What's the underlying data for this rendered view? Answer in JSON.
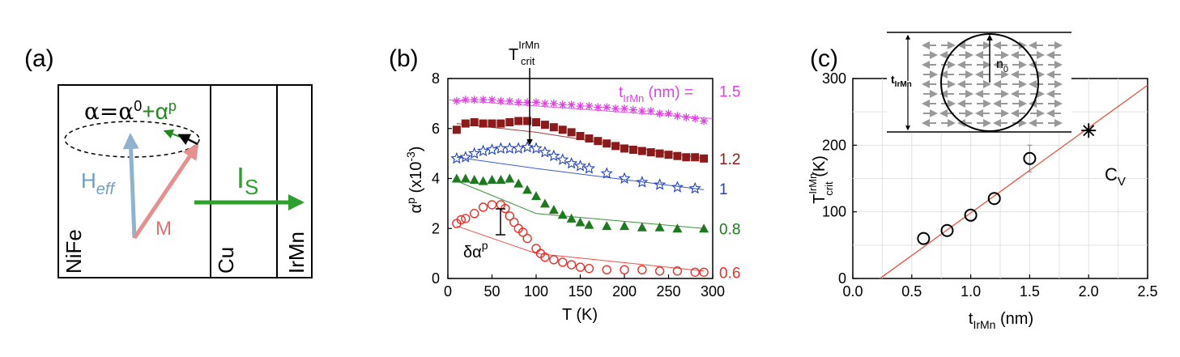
{
  "panels": {
    "a": {
      "label": "(a)",
      "layers": [
        "NiFe",
        "Cu",
        "IrMn"
      ],
      "alpha_eq": {
        "a": "α=α",
        "sup0": "0",
        "plus": "+α",
        "supp": "p"
      },
      "heff": {
        "H": "H",
        "eff": "eff"
      },
      "m_label": "M",
      "is_label": {
        "I": "I",
        "s": "S"
      },
      "colors": {
        "heff": "#8fb3cf",
        "m": "#e89090",
        "is": "#2ca02c",
        "alpha_p": "#1e8a1e"
      }
    },
    "b": {
      "label": "(b)",
      "tcrit": {
        "T": "T",
        "sup": "IrMn",
        "sub": "crit"
      },
      "delta_alpha": {
        "d": "δα",
        "sup": "p"
      },
      "legend_prefix": {
        "t": "t",
        "sub": "IrMn",
        "rest": " (nm) ="
      },
      "xlabel": "T (K)",
      "ylabel": {
        "a": "α",
        "sup": "p",
        "mid": " (x10",
        "exp": "-3",
        "end": ")"
      },
      "xticks": [
        "0",
        "50",
        "100",
        "150",
        "200",
        "250",
        "300"
      ],
      "yticks": [
        "0",
        "2",
        "4",
        "6",
        "8"
      ]
    },
    "c": {
      "label": "(c)",
      "inset": {
        "t": "t",
        "sub": "IrMn",
        "n": "n",
        "nsub": "0"
      },
      "ylabel": {
        "T": "T",
        "sup": "IrMn",
        "sub": "crit",
        "unit": " (K)"
      },
      "xlabel": {
        "t": "t",
        "sub": "IrMn",
        "unit": " (nm)"
      },
      "xticks": [
        "0.0",
        "0.5",
        "1.0",
        "1.5",
        "2.0",
        "2.5"
      ],
      "yticks": [
        "0",
        "100",
        "200",
        "300"
      ],
      "cv_label": {
        "C": "C",
        "sub": "V"
      }
    }
  },
  "chart_data": [
    {
      "type": "scatter",
      "xlim": [
        0,
        300
      ],
      "ylim": [
        0,
        8
      ],
      "grid": false,
      "series": [
        {
          "name": "1.5",
          "marker": "asterisk",
          "color": "#e040e0",
          "x": [
            10,
            20,
            30,
            40,
            50,
            60,
            70,
            80,
            90,
            100,
            110,
            120,
            130,
            140,
            150,
            160,
            170,
            180,
            190,
            200,
            210,
            220,
            230,
            240,
            250,
            260,
            270,
            280,
            290
          ],
          "y": [
            7.1,
            7.15,
            7.15,
            7.15,
            7.15,
            7.1,
            7.1,
            7.05,
            7.05,
            7.05,
            7.0,
            7.0,
            6.95,
            6.95,
            6.9,
            6.9,
            6.85,
            6.85,
            6.8,
            6.8,
            6.75,
            6.7,
            6.7,
            6.6,
            6.6,
            6.5,
            6.45,
            6.4,
            6.3
          ],
          "fit": [
            [
              0,
              7.15
            ],
            [
              300,
              6.4
            ]
          ]
        },
        {
          "name": "1.2",
          "marker": "square",
          "color": "#8b1a1a",
          "x": [
            10,
            20,
            30,
            40,
            50,
            60,
            70,
            80,
            90,
            100,
            110,
            120,
            130,
            140,
            150,
            160,
            170,
            180,
            190,
            200,
            210,
            220,
            230,
            240,
            250,
            260,
            270,
            280,
            290
          ],
          "y": [
            5.95,
            6.2,
            6.25,
            6.2,
            6.2,
            6.2,
            6.25,
            6.3,
            6.3,
            6.25,
            6.15,
            6.05,
            5.95,
            5.85,
            5.7,
            5.6,
            5.5,
            5.4,
            5.3,
            5.2,
            5.15,
            5.1,
            5.05,
            5.0,
            4.95,
            4.9,
            4.85,
            4.85,
            4.8
          ],
          "fit": [
            [
              10,
              6.2
            ],
            [
              100,
              5.85
            ],
            [
              290,
              4.8
            ]
          ]
        },
        {
          "name": "1",
          "marker": "star",
          "color": "#1f3fbf",
          "x": [
            10,
            20,
            30,
            40,
            50,
            60,
            70,
            80,
            90,
            100,
            110,
            120,
            130,
            140,
            150,
            160,
            180,
            200,
            220,
            240,
            260,
            280
          ],
          "y": [
            4.8,
            4.85,
            5.0,
            5.1,
            5.15,
            5.2,
            5.2,
            5.2,
            5.25,
            5.2,
            5.05,
            4.9,
            4.75,
            4.6,
            4.5,
            4.4,
            4.2,
            4.0,
            3.85,
            3.75,
            3.65,
            3.6
          ],
          "fit": [
            [
              10,
              4.85
            ],
            [
              100,
              4.4
            ],
            [
              290,
              3.55
            ]
          ]
        },
        {
          "name": "0.8",
          "marker": "triangle",
          "color": "#1e7a1e",
          "x": [
            10,
            20,
            30,
            40,
            50,
            60,
            70,
            80,
            90,
            100,
            110,
            120,
            130,
            140,
            150,
            160,
            180,
            200,
            220,
            240,
            260,
            290
          ],
          "y": [
            4.0,
            4.0,
            3.95,
            3.9,
            3.95,
            3.95,
            4.0,
            3.8,
            3.55,
            3.3,
            3.0,
            2.75,
            2.55,
            2.4,
            2.25,
            2.15,
            2.1,
            2.1,
            2.05,
            2.05,
            2.0,
            2.0
          ],
          "fit": [
            [
              10,
              3.9
            ],
            [
              100,
              2.6
            ],
            [
              290,
              2.0
            ]
          ]
        },
        {
          "name": "0.6",
          "marker": "circle",
          "color": "#e8302a",
          "x": [
            10,
            15,
            20,
            30,
            40,
            50,
            60,
            65,
            70,
            75,
            80,
            85,
            90,
            100,
            105,
            110,
            120,
            130,
            140,
            150,
            160,
            180,
            200,
            220,
            240,
            260,
            280,
            290
          ],
          "y": [
            2.2,
            2.35,
            2.4,
            2.6,
            2.85,
            2.95,
            2.95,
            2.8,
            2.5,
            2.25,
            2.0,
            1.85,
            1.6,
            1.2,
            1.0,
            0.85,
            0.75,
            0.65,
            0.55,
            0.45,
            0.4,
            0.35,
            0.35,
            0.35,
            0.3,
            0.3,
            0.25,
            0.25
          ],
          "fit": [
            [
              10,
              2.1
            ],
            [
              100,
              1.0
            ],
            [
              290,
              0.3
            ]
          ]
        }
      ]
    },
    {
      "type": "scatter",
      "xlabel": "t_IrMn (nm)",
      "ylabel": "T_crit^IrMn (K)",
      "xlim": [
        0,
        2.5
      ],
      "ylim": [
        0,
        300
      ],
      "grid": true,
      "series": [
        {
          "name": "data",
          "marker": "circle",
          "x": [
            0.6,
            0.8,
            1.0,
            1.2,
            1.5
          ],
          "y": [
            60,
            72,
            95,
            120,
            180
          ],
          "error": [
            0,
            0,
            0,
            0,
            20
          ]
        },
        {
          "name": "C_V",
          "marker": "asterisk",
          "x": [
            2.0
          ],
          "y": [
            222
          ]
        }
      ],
      "fit_line": [
        [
          0.23,
          0
        ],
        [
          2.5,
          290
        ]
      ],
      "fit_color": "#e06050"
    }
  ]
}
